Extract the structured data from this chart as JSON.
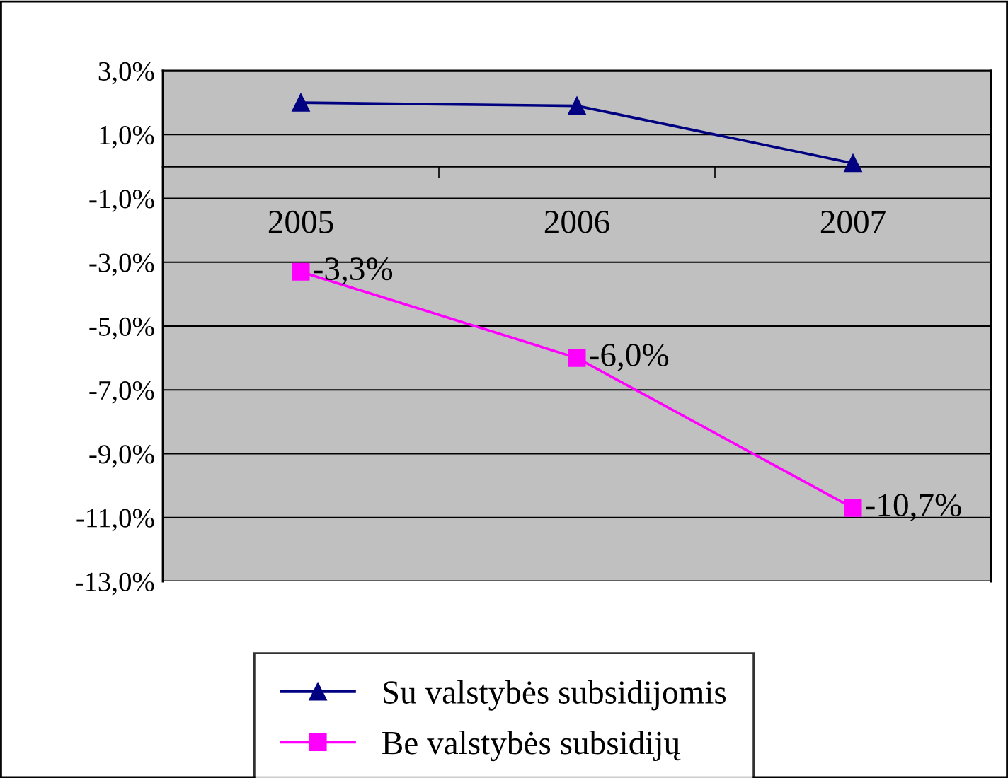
{
  "chart_data": {
    "type": "line",
    "categories": [
      "2005",
      "2006",
      "2007"
    ],
    "series": [
      {
        "name": "Su valstybės subsidijomis",
        "color": "#000080",
        "values": [
          2.0,
          1.9,
          0.1
        ],
        "marker": "triangle"
      },
      {
        "name": "Be valstybės subsidijų",
        "color": "#ff00ff",
        "values": [
          -3.3,
          -6.0,
          -10.7
        ],
        "marker": "square",
        "value_labels": [
          "-3,3%",
          "-6,0%",
          "-10,7%"
        ]
      }
    ],
    "ylim": [
      -13,
      3
    ],
    "yticks": [
      {
        "value": -13,
        "label": "-13,0%"
      },
      {
        "value": -11,
        "label": "-11,0%"
      },
      {
        "value": -9,
        "label": "-9,0%"
      },
      {
        "value": -7,
        "label": "-7,0%"
      },
      {
        "value": -5,
        "label": "-5,0%"
      },
      {
        "value": -3,
        "label": "-3,0%"
      },
      {
        "value": -1,
        "label": "-1,0%"
      },
      {
        "value": 1,
        "label": "1,0%"
      },
      {
        "value": 3,
        "label": "3,0%"
      }
    ],
    "grid": "y",
    "legend": "bottom"
  }
}
